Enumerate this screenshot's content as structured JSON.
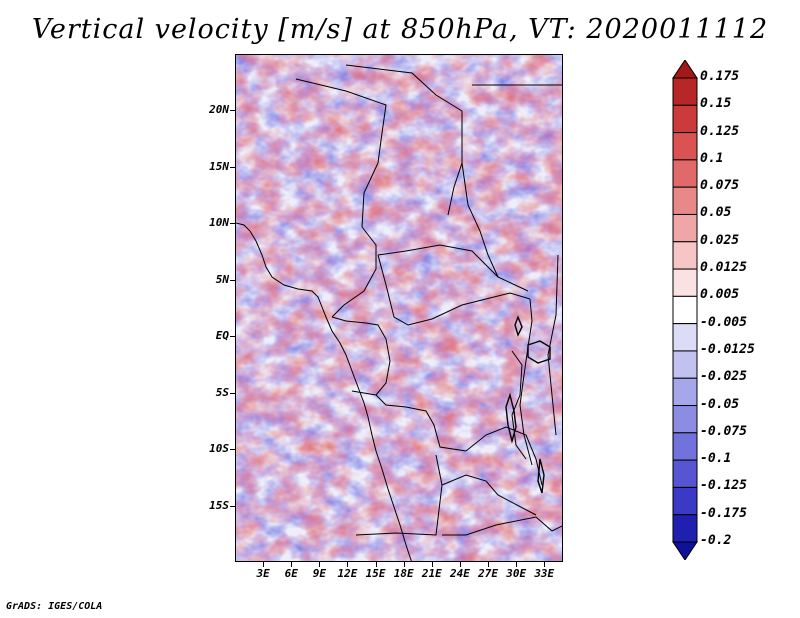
{
  "title": "Vertical velocity [m/s] at 850hPa, VT: 2020011112",
  "credit": "GrADS: IGES/COLA",
  "map": {
    "lat_labels": [
      "20N",
      "15N",
      "10N",
      "5N",
      "EQ",
      "5S",
      "10S",
      "15S"
    ],
    "lon_labels": [
      "3E",
      "6E",
      "9E",
      "12E",
      "15E",
      "18E",
      "21E",
      "24E",
      "27E",
      "30E",
      "33E"
    ],
    "lat_range": [
      -20,
      25
    ],
    "lon_range": [
      0,
      35
    ]
  },
  "colorbar": {
    "labels": [
      "0.175",
      "0.15",
      "0.125",
      "0.1",
      "0.075",
      "0.05",
      "0.025",
      "0.0125",
      "0.005",
      "-0.005",
      "-0.0125",
      "-0.025",
      "-0.05",
      "-0.075",
      "-0.1",
      "-0.125",
      "-0.175",
      "-0.2"
    ],
    "colors": [
      "#a11919",
      "#b82727",
      "#cc3b3b",
      "#db5252",
      "#e06a6a",
      "#e88888",
      "#f0a6a6",
      "#f6c6c6",
      "#fbe2e2",
      "#ffffff",
      "#dcdcf6",
      "#c2c2f0",
      "#a6a6ea",
      "#8c8ce2",
      "#7272dc",
      "#5656d2",
      "#3a3ac6",
      "#2020b0",
      "#10109a"
    ]
  },
  "chart_data": {
    "type": "heatmap",
    "title": "Vertical velocity [m/s] at 850hPa, VT: 2020011112",
    "variable": "Vertical velocity",
    "units": "m/s",
    "level": "850hPa",
    "valid_time": "2020011112",
    "x_ticks": [
      "3E",
      "6E",
      "9E",
      "12E",
      "15E",
      "18E",
      "21E",
      "24E",
      "27E",
      "30E",
      "33E"
    ],
    "y_ticks": [
      "20N",
      "15N",
      "10N",
      "5N",
      "EQ",
      "5S",
      "10S",
      "15S"
    ],
    "levels": [
      -0.2,
      -0.175,
      -0.125,
      -0.1,
      -0.075,
      -0.05,
      -0.025,
      -0.0125,
      -0.005,
      0.005,
      0.0125,
      0.025,
      0.05,
      0.075,
      0.1,
      0.125,
      0.15,
      0.175
    ]
  }
}
